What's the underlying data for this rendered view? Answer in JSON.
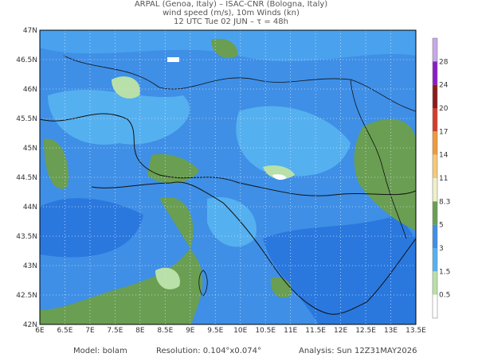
{
  "header": {
    "line1": "ARPAL (Genoa, Italy)  –  ISAC-CNR (Bologna, Italy)",
    "line2": "wind speed (m/s), 10m Winds (kn)",
    "line3": "12 UTC Tue 02 JUN  –  τ = 48h"
  },
  "map": {
    "lat_labels": [
      "47N",
      "46.5N",
      "46N",
      "45.5N",
      "45N",
      "44.5N",
      "44N",
      "43.5N",
      "43N",
      "42.5N",
      "42N"
    ],
    "lon_labels": [
      "6E",
      "6.5E",
      "7E",
      "7.5E",
      "8E",
      "8.5E",
      "9E",
      "9.5E",
      "10E",
      "10.5E",
      "11E",
      "11.5E",
      "12E",
      "12.5E",
      "13E",
      "13.5E"
    ]
  },
  "colorbar": {
    "labels": [
      28,
      24,
      20,
      17,
      14,
      11,
      8.3,
      5,
      3,
      1.5,
      0.5
    ]
  },
  "footer": {
    "model": "Model:  bolam",
    "resolution": "Resolution:  0.104°x0.074°",
    "analysis": "Analysis:  Sun  12Z31MAY2026"
  }
}
